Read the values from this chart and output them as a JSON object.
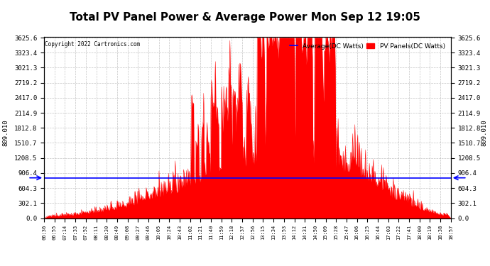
{
  "title": "Total PV Panel Power & Average Power Mon Sep 12 19:05",
  "copyright": "Copyright 2022 Cartronics.com",
  "legend_avg": "Average(DC Watts)",
  "legend_pv": "PV Panels(DC Watts)",
  "avg_value": 809.01,
  "avg_label": "809.010",
  "ymax": 3625.6,
  "ymin": 0.0,
  "yticks": [
    0.0,
    302.1,
    604.3,
    906.4,
    1208.5,
    1510.7,
    1812.8,
    2114.9,
    2417.0,
    2719.2,
    3021.3,
    3323.4,
    3625.6
  ],
  "pv_color": "#FF0000",
  "avg_color": "#0000FF",
  "bg_color": "#FFFFFF",
  "grid_color": "#AAAAAA",
  "title_fontsize": 11,
  "time_labels": [
    "06:36",
    "06:55",
    "07:14",
    "07:33",
    "07:52",
    "08:11",
    "08:30",
    "08:49",
    "09:08",
    "09:27",
    "09:46",
    "10:05",
    "10:24",
    "10:43",
    "11:02",
    "11:21",
    "11:40",
    "11:59",
    "12:18",
    "12:37",
    "12:56",
    "13:15",
    "13:34",
    "13:53",
    "14:12",
    "14:31",
    "14:50",
    "15:09",
    "15:28",
    "15:47",
    "16:06",
    "16:25",
    "16:44",
    "17:03",
    "17:22",
    "17:41",
    "18:00",
    "18:19",
    "18:38",
    "18:57"
  ],
  "n_points": 730
}
